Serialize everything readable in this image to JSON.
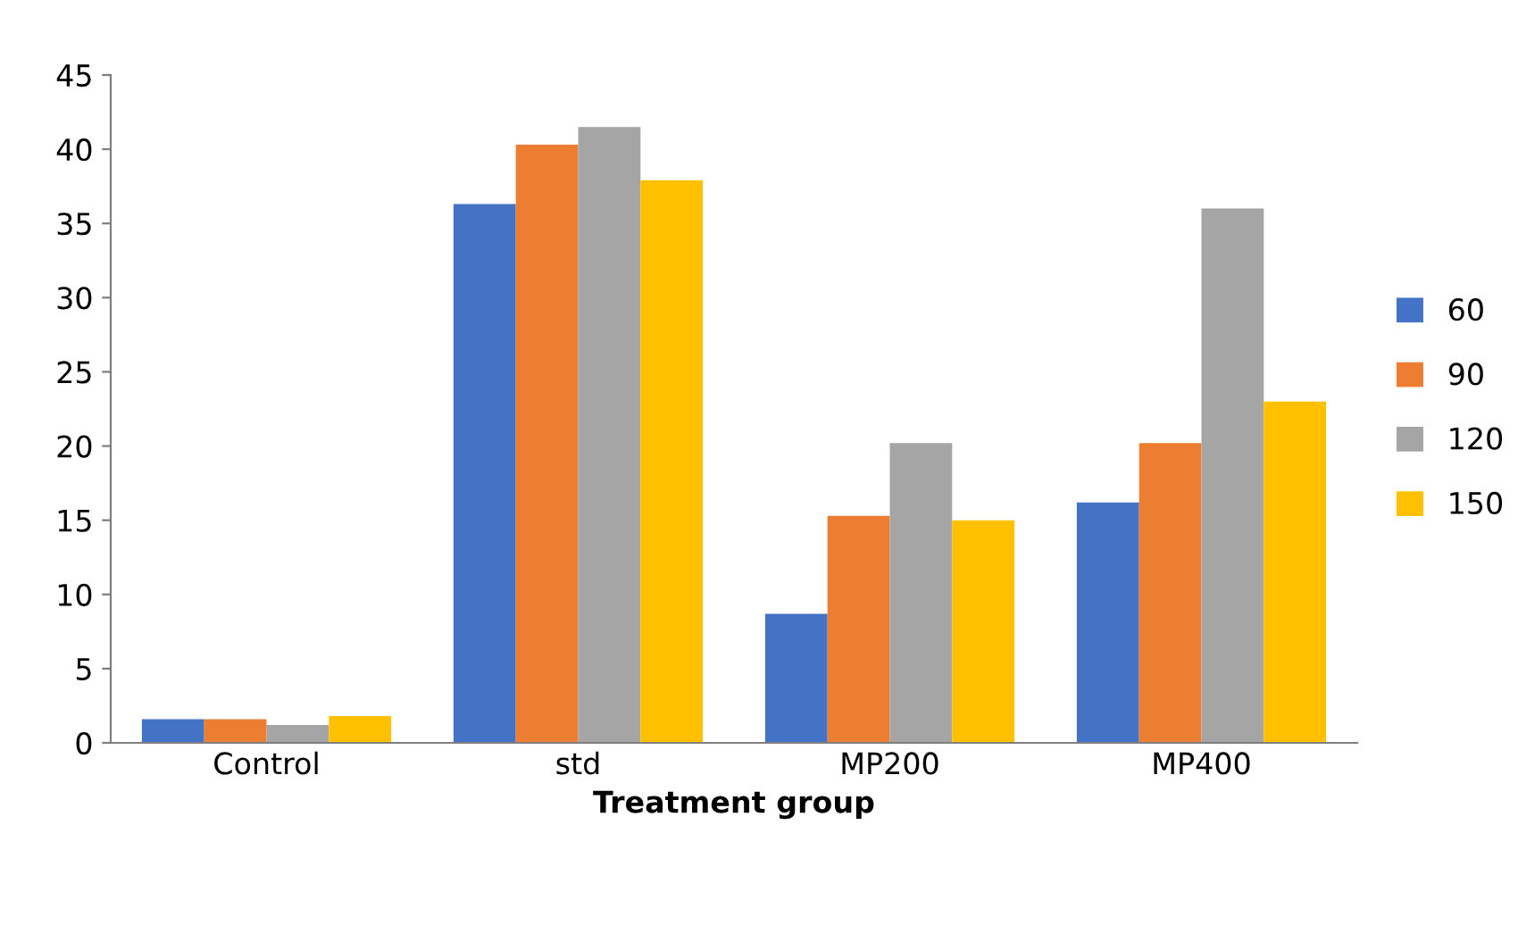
{
  "chart_data": {
    "type": "bar",
    "xlabel": "Treatment group",
    "categories": [
      "Control",
      "std",
      "MP200",
      "MP400"
    ],
    "series": [
      {
        "name": "60",
        "color": "#4472c4",
        "values": [
          1.6,
          36.3,
          8.7,
          16.2
        ]
      },
      {
        "name": "90",
        "color": "#ed7d31",
        "values": [
          1.6,
          40.3,
          15.3,
          20.2
        ]
      },
      {
        "name": "120",
        "color": "#a5a5a5",
        "values": [
          1.2,
          41.5,
          20.2,
          36.0
        ]
      },
      {
        "name": "150",
        "color": "#ffc000",
        "values": [
          1.8,
          37.9,
          15.0,
          23.0
        ]
      }
    ],
    "ylim": [
      0,
      45
    ],
    "yticks": [
      0,
      5,
      10,
      15,
      20,
      25,
      30,
      35,
      40,
      45
    ],
    "grid": false,
    "legend": "right"
  }
}
